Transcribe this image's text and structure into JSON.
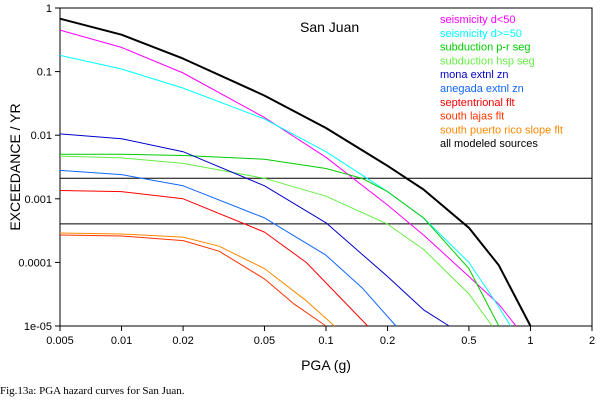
{
  "caption": "Fig.13a:  PGA hazard curves for San Juan.",
  "chart_data": {
    "type": "line",
    "title": "San Juan",
    "xlabel": "PGA (g)",
    "ylabel": "EXCEEDANCE / YR",
    "xscale": "log",
    "yscale": "log",
    "xlim": [
      0.005,
      2
    ],
    "ylim": [
      1e-05,
      1
    ],
    "x_ticks": [
      0.005,
      0.01,
      0.02,
      0.05,
      0.1,
      0.2,
      0.5,
      1,
      2
    ],
    "x_tick_labels": [
      "0.005",
      "0.01",
      "0.02",
      "0.05",
      "0.1",
      "0.2",
      "0.5",
      "1",
      "2"
    ],
    "y_ticks": [
      1,
      0.1,
      0.01,
      0.001,
      0.0001,
      1e-05
    ],
    "y_tick_labels": [
      "1",
      "0.1",
      "0.01",
      "0.001",
      "0.0001",
      "1e-05"
    ],
    "reference_lines": [
      0.0021,
      0.000404
    ],
    "grid": false,
    "legend_position": "top-right",
    "series": [
      {
        "name": "seismicity d<50",
        "color": "#ff00ff",
        "x": [
          0.005,
          0.01,
          0.02,
          0.05,
          0.1,
          0.2,
          0.3,
          0.5,
          0.7,
          0.85
        ],
        "y": [
          0.45,
          0.24,
          0.095,
          0.019,
          0.0045,
          0.0008,
          0.00027,
          6e-05,
          2.2e-05,
          1e-05
        ]
      },
      {
        "name": "seismicity d>=50",
        "color": "#00ffff",
        "x": [
          0.005,
          0.01,
          0.02,
          0.05,
          0.1,
          0.2,
          0.3,
          0.5,
          0.7,
          0.8
        ],
        "y": [
          0.18,
          0.11,
          0.055,
          0.018,
          0.0055,
          0.0013,
          0.0005,
          0.0001,
          2e-05,
          1e-05
        ]
      },
      {
        "name": "subduction p-r seg",
        "color": "#00cc00",
        "x": [
          0.005,
          0.01,
          0.02,
          0.05,
          0.1,
          0.15,
          0.2,
          0.3,
          0.5,
          0.7
        ],
        "y": [
          0.005,
          0.005,
          0.0048,
          0.0042,
          0.003,
          0.0021,
          0.0013,
          0.0005,
          8e-05,
          1e-05
        ]
      },
      {
        "name": "subduction hsp seg",
        "color": "#66ee44",
        "x": [
          0.005,
          0.01,
          0.02,
          0.05,
          0.1,
          0.2,
          0.3,
          0.5,
          0.65
        ],
        "y": [
          0.0047,
          0.0044,
          0.0036,
          0.0021,
          0.0011,
          0.0004,
          0.00016,
          3.2e-05,
          1e-05
        ]
      },
      {
        "name": "mona extnl zn",
        "color": "#0000cc",
        "x": [
          0.005,
          0.01,
          0.02,
          0.05,
          0.1,
          0.2,
          0.3,
          0.4
        ],
        "y": [
          0.0105,
          0.0088,
          0.0055,
          0.0016,
          0.00042,
          6e-05,
          1.8e-05,
          1e-05
        ]
      },
      {
        "name": "anegada extnl zn",
        "color": "#1166ff",
        "x": [
          0.005,
          0.01,
          0.02,
          0.05,
          0.1,
          0.15,
          0.22
        ],
        "y": [
          0.0028,
          0.0024,
          0.0016,
          0.0005,
          0.00013,
          4e-05,
          1e-05
        ]
      },
      {
        "name": "septentrional flt",
        "color": "#ff0000",
        "x": [
          0.005,
          0.01,
          0.02,
          0.05,
          0.08,
          0.12,
          0.16
        ],
        "y": [
          0.00135,
          0.0013,
          0.001,
          0.0003,
          0.0001,
          2.6e-05,
          1e-05
        ]
      },
      {
        "name": "south lajas flt",
        "color": "#ff3300",
        "x": [
          0.005,
          0.01,
          0.02,
          0.03,
          0.05,
          0.07,
          0.1
        ],
        "y": [
          0.00027,
          0.00026,
          0.00022,
          0.00015,
          5.5e-05,
          2.2e-05,
          1e-05
        ]
      },
      {
        "name": "south puerto rico slope flt",
        "color": "#ff8800",
        "x": [
          0.005,
          0.01,
          0.02,
          0.03,
          0.05,
          0.08,
          0.11
        ],
        "y": [
          0.00029,
          0.00028,
          0.00025,
          0.00018,
          8e-05,
          2.5e-05,
          1e-05
        ]
      },
      {
        "name": "all modeled sources",
        "color": "#000000",
        "x": [
          0.005,
          0.01,
          0.02,
          0.05,
          0.1,
          0.2,
          0.3,
          0.5,
          0.7,
          1.0
        ],
        "y": [
          0.68,
          0.38,
          0.16,
          0.042,
          0.013,
          0.0033,
          0.0014,
          0.00035,
          9e-05,
          1e-05
        ]
      }
    ]
  }
}
